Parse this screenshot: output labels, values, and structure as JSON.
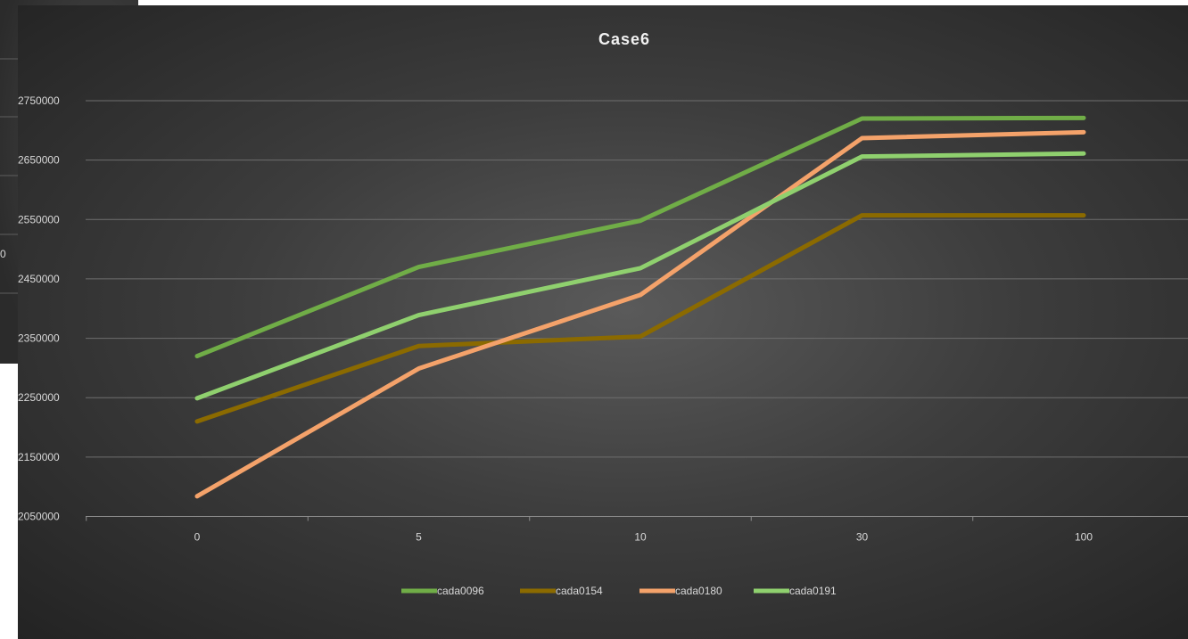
{
  "background_chart": {
    "tick_label": "0"
  },
  "chart_data": {
    "type": "line",
    "title": "Case6",
    "xlabel": "",
    "ylabel": "",
    "categories": [
      "0",
      "5",
      "10",
      "30",
      "100"
    ],
    "y_ticks": [
      2050000,
      2150000,
      2250000,
      2350000,
      2450000,
      2550000,
      2650000,
      2750000
    ],
    "y_tick_labels": [
      "2050000",
      "2150000",
      "2250000",
      "2350000",
      "2450000",
      "2550000",
      "2650000",
      "2750000"
    ],
    "ylim": [
      2050000,
      2800000
    ],
    "grid": true,
    "legend_position": "bottom",
    "series": [
      {
        "name": "cada0096",
        "color": "#70ad47",
        "values": [
          2320000,
          2470000,
          2548000,
          2720000,
          2721000
        ]
      },
      {
        "name": "cada0154",
        "color": "#8b6a00",
        "values": [
          2210000,
          2337000,
          2353000,
          2557000,
          2557000
        ]
      },
      {
        "name": "cada0180",
        "color": "#f4a26a",
        "values": [
          2084000,
          2299000,
          2423000,
          2687000,
          2697000
        ]
      },
      {
        "name": "cada0191",
        "color": "#8fd06e",
        "values": [
          2249000,
          2389000,
          2468000,
          2656000,
          2661000
        ]
      }
    ]
  }
}
